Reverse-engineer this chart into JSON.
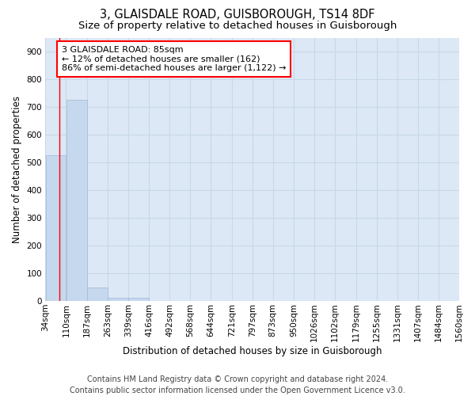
{
  "title_line1": "3, GLAISDALE ROAD, GUISBOROUGH, TS14 8DF",
  "title_line2": "Size of property relative to detached houses in Guisborough",
  "xlabel": "Distribution of detached houses by size in Guisborough",
  "ylabel": "Number of detached properties",
  "bar_color": "#c5d8ee",
  "bar_edge_color": "#a0b8d8",
  "annotation_text": "3 GLAISDALE ROAD: 85sqm\n← 12% of detached houses are smaller (162)\n86% of semi-detached houses are larger (1,122) →",
  "property_line_x": 85,
  "footer_line1": "Contains HM Land Registry data © Crown copyright and database right 2024.",
  "footer_line2": "Contains public sector information licensed under the Open Government Licence v3.0.",
  "bin_edges": [
    34,
    110,
    187,
    263,
    339,
    416,
    492,
    568,
    644,
    721,
    797,
    873,
    950,
    1026,
    1102,
    1179,
    1255,
    1331,
    1407,
    1484,
    1560
  ],
  "bar_heights": [
    525,
    727,
    47,
    11,
    10,
    0,
    0,
    0,
    0,
    0,
    0,
    0,
    0,
    0,
    0,
    0,
    0,
    0,
    0,
    0
  ],
  "ylim": [
    0,
    950
  ],
  "yticks": [
    0,
    100,
    200,
    300,
    400,
    500,
    600,
    700,
    800,
    900
  ],
  "plot_bg_color": "#dce8f5",
  "grid_color": "#c8d8e8",
  "title_fontsize": 10.5,
  "subtitle_fontsize": 9.5,
  "axis_label_fontsize": 8.5,
  "tick_fontsize": 7.5,
  "annot_fontsize": 8,
  "footer_fontsize": 7
}
